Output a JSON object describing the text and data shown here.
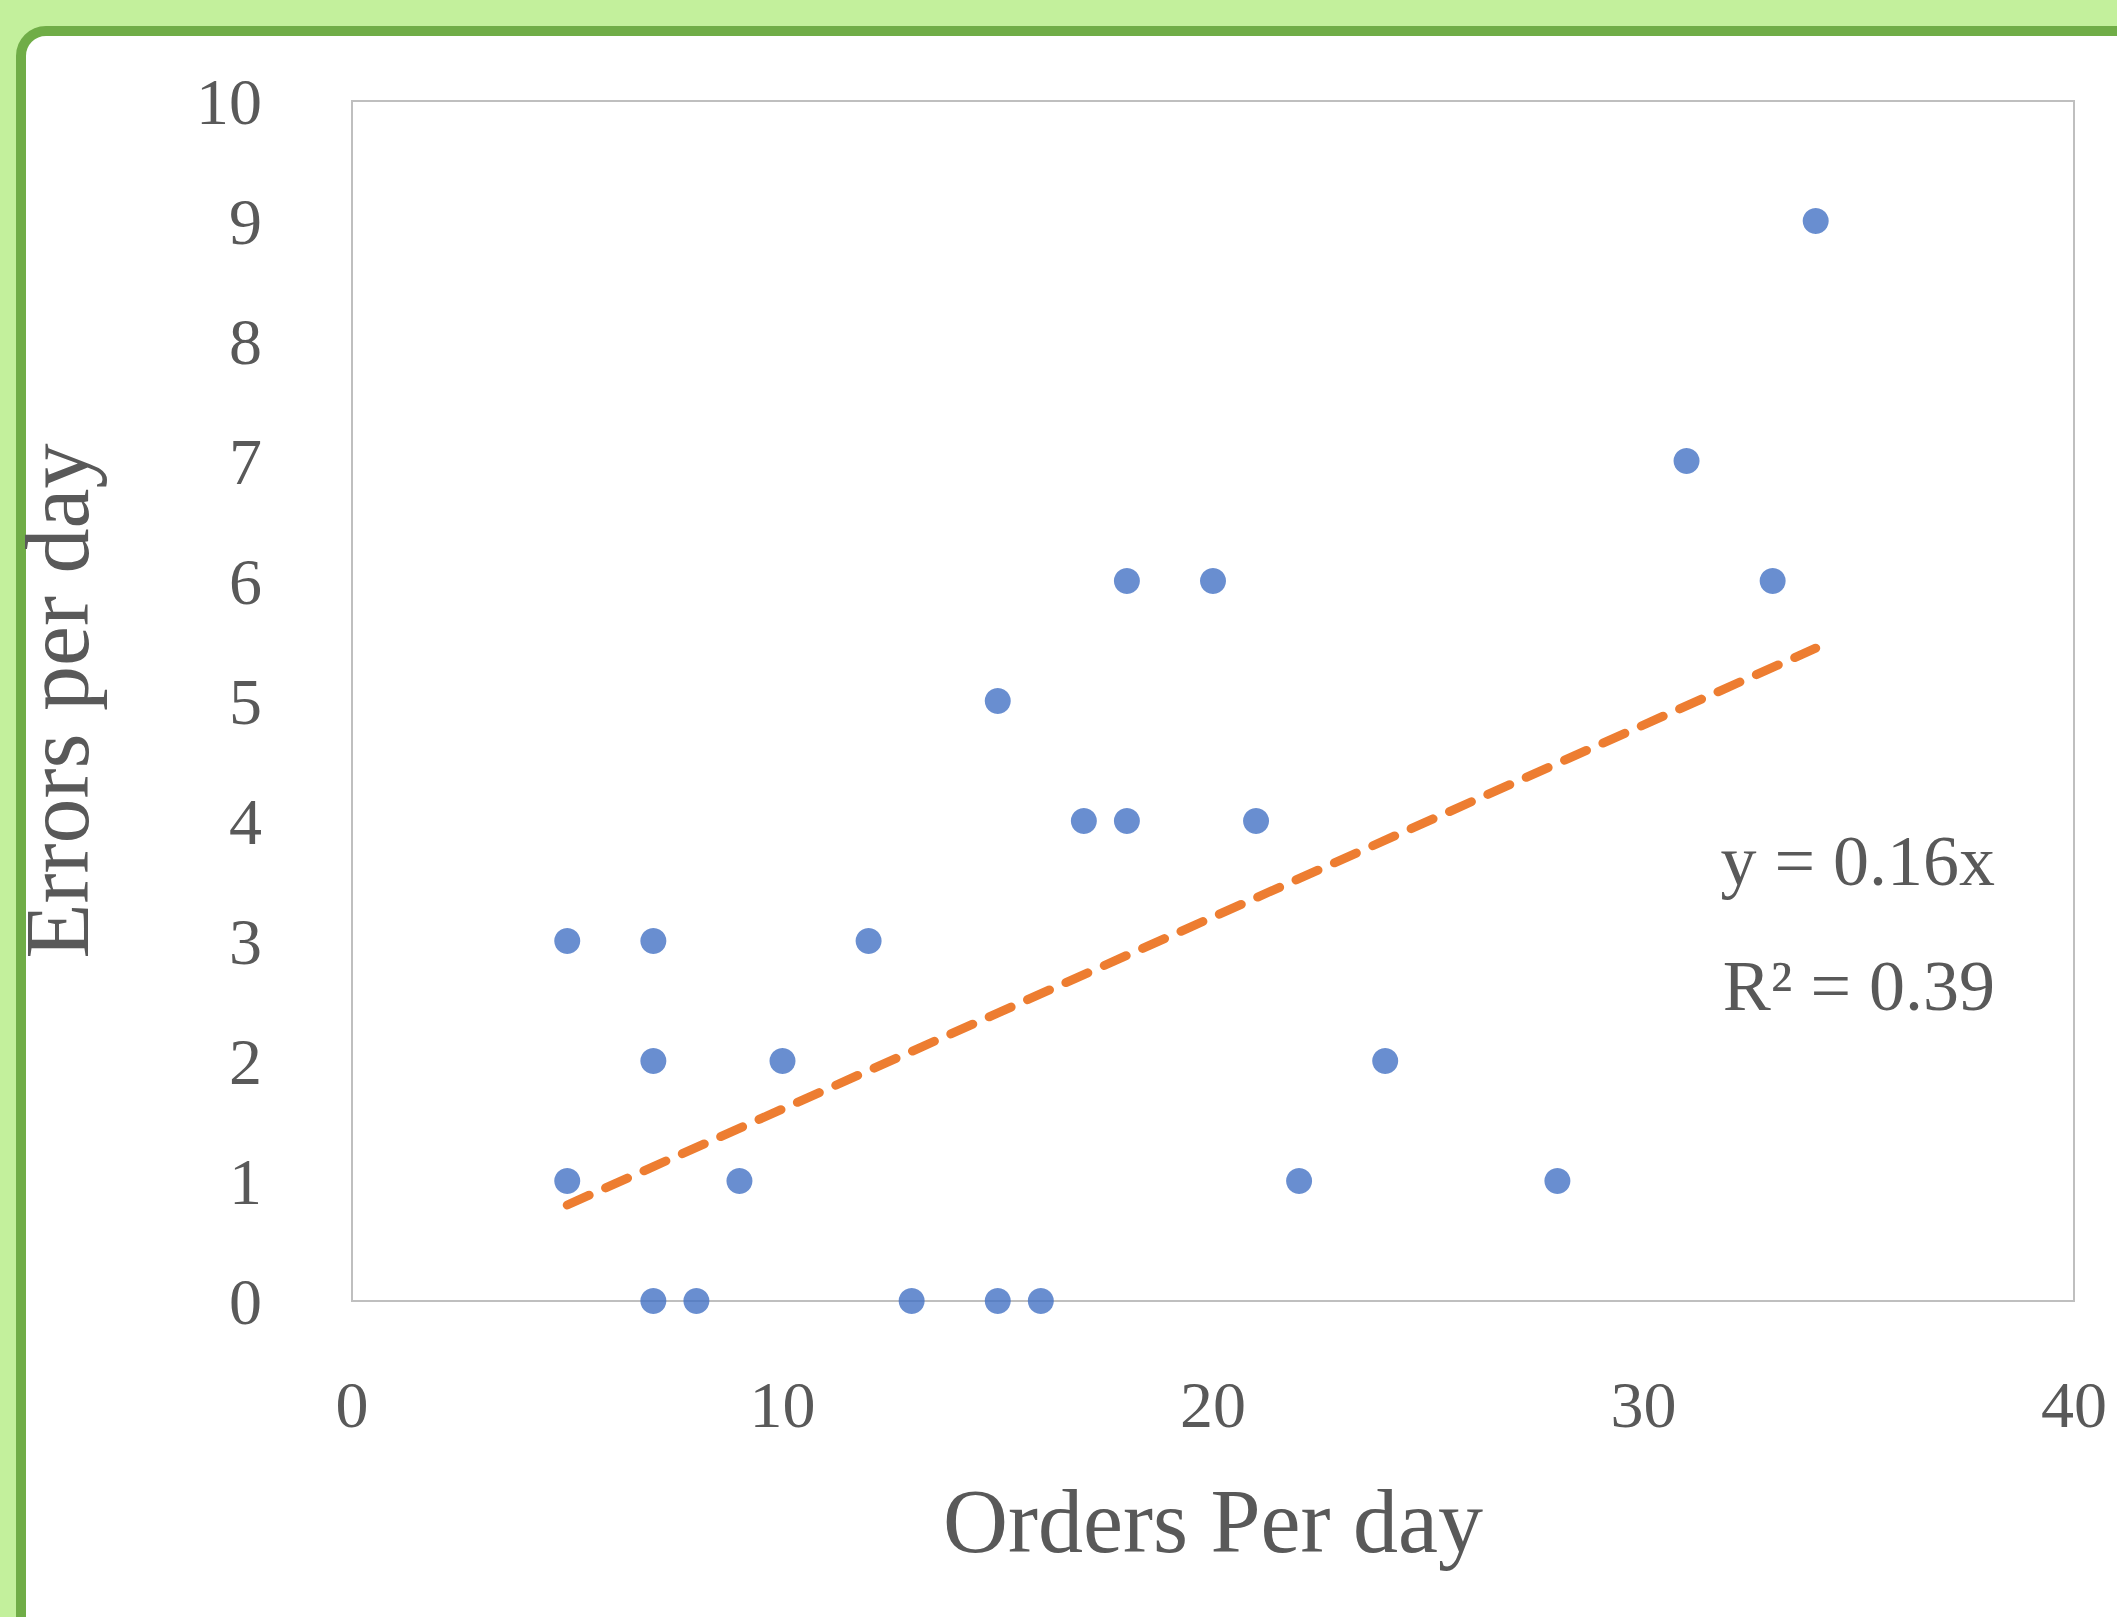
{
  "chart_data": {
    "type": "scatter",
    "xlabel": "Orders Per day",
    "ylabel": "Errors per day",
    "x": [
      5,
      7,
      7,
      5,
      7,
      8,
      9,
      10,
      12,
      13,
      15,
      15,
      16,
      17,
      18,
      18,
      20,
      21,
      22,
      24,
      28,
      31,
      33,
      34
    ],
    "series": [
      {
        "color": "#4472c4",
        "marker": "circle",
        "values": [
          3,
          3,
          2,
          1,
          0,
          0,
          1,
          2,
          3,
          0,
          5,
          0,
          0,
          4,
          4,
          6,
          6,
          4,
          1,
          2,
          1,
          7,
          6,
          9
        ]
      },
      {
        "type": "line",
        "color": "#ed7d31",
        "line_style": "dashed",
        "marker": "none",
        "x": [
          5,
          34
        ],
        "values": [
          0.8,
          5.44
        ]
      }
    ],
    "xlim": [
      0,
      40
    ],
    "ylim": [
      0,
      10
    ],
    "xticks": [
      0,
      10,
      20,
      30,
      40
    ],
    "yticks": [
      0,
      1,
      2,
      3,
      4,
      5,
      6,
      7,
      8,
      9,
      10
    ],
    "grid": false,
    "annotations": [
      "y = 0.16x",
      "R² = 0.39"
    ]
  }
}
